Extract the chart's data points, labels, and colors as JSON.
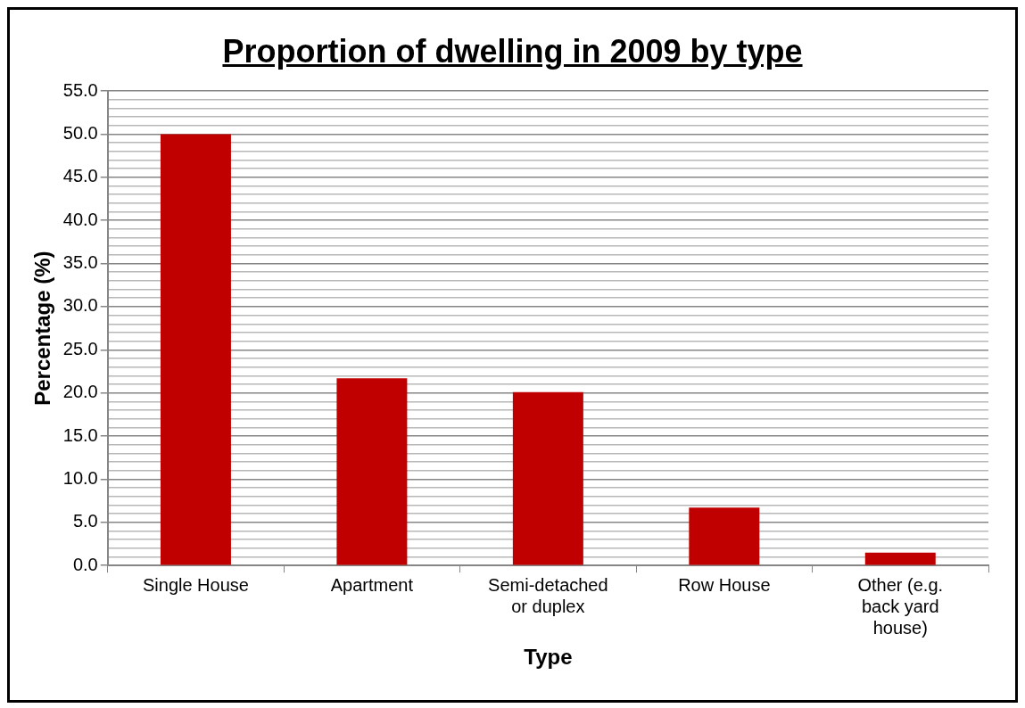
{
  "chart_data": {
    "type": "bar",
    "title": "Proportion of dwelling in 2009 by type",
    "xlabel": "Type",
    "ylabel": "Percentage (%)",
    "categories": [
      "Single House",
      "Apartment",
      "Semi-detached or duplex",
      "Row House",
      "Other (e.g. back yard house)"
    ],
    "values": [
      50.0,
      21.7,
      20.1,
      6.7,
      1.5
    ],
    "color": "#c00000",
    "ylim": [
      0,
      55
    ],
    "yticks": [
      {
        "value": 0,
        "label": "0.0"
      },
      {
        "value": 1,
        "label": null
      },
      {
        "value": 2,
        "label": null
      },
      {
        "value": 3,
        "label": null
      },
      {
        "value": 4,
        "label": null
      },
      {
        "value": 5,
        "label": "5.0"
      },
      {
        "value": 6,
        "label": null
      },
      {
        "value": 7,
        "label": null
      },
      {
        "value": 8,
        "label": null
      },
      {
        "value": 9,
        "label": null
      },
      {
        "value": 10,
        "label": "10.0"
      },
      {
        "value": 11,
        "label": null
      },
      {
        "value": 12,
        "label": null
      },
      {
        "value": 13,
        "label": null
      },
      {
        "value": 14,
        "label": null
      },
      {
        "value": 15,
        "label": "15.0"
      },
      {
        "value": 16,
        "label": null
      },
      {
        "value": 17,
        "label": null
      },
      {
        "value": 18,
        "label": null
      },
      {
        "value": 19,
        "label": null
      },
      {
        "value": 20,
        "label": "20.0"
      },
      {
        "value": 21,
        "label": null
      },
      {
        "value": 22,
        "label": null
      },
      {
        "value": 23,
        "label": null
      },
      {
        "value": 24,
        "label": null
      },
      {
        "value": 25,
        "label": "25.0"
      },
      {
        "value": 26,
        "label": null
      },
      {
        "value": 27,
        "label": null
      },
      {
        "value": 28,
        "label": null
      },
      {
        "value": 29,
        "label": null
      },
      {
        "value": 30,
        "label": "30.0"
      },
      {
        "value": 31,
        "label": null
      },
      {
        "value": 32,
        "label": null
      },
      {
        "value": 33,
        "label": null
      },
      {
        "value": 34,
        "label": null
      },
      {
        "value": 35,
        "label": "35.0"
      },
      {
        "value": 36,
        "label": null
      },
      {
        "value": 37,
        "label": null
      },
      {
        "value": 38,
        "label": null
      },
      {
        "value": 39,
        "label": null
      },
      {
        "value": 40,
        "label": "40.0"
      },
      {
        "value": 41,
        "label": null
      },
      {
        "value": 42,
        "label": null
      },
      {
        "value": 43,
        "label": null
      },
      {
        "value": 44,
        "label": null
      },
      {
        "value": 45,
        "label": "45.0"
      },
      {
        "value": 46,
        "label": null
      },
      {
        "value": 47,
        "label": null
      },
      {
        "value": 48,
        "label": null
      },
      {
        "value": 49,
        "label": null
      },
      {
        "value": 50,
        "label": "50.0"
      },
      {
        "value": 51,
        "label": null
      },
      {
        "value": 52,
        "label": null
      },
      {
        "value": 53,
        "label": null
      },
      {
        "value": 54,
        "label": null
      },
      {
        "value": 55,
        "label": "55.0"
      }
    ],
    "grid": "y"
  }
}
